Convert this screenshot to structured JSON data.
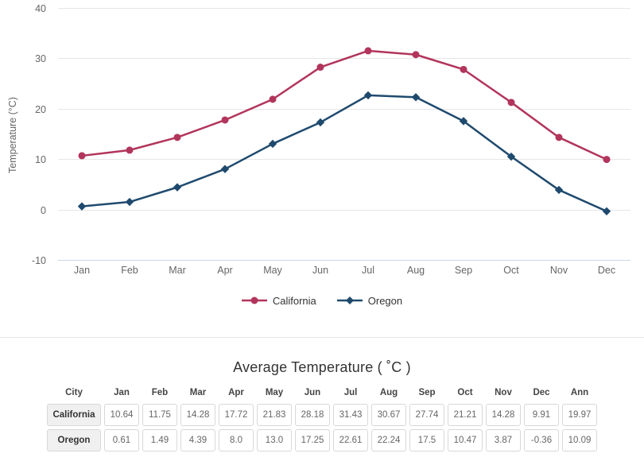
{
  "chart": {
    "y_ticks": [
      40,
      30,
      20,
      10,
      0,
      -10
    ],
    "colors": {
      "grid": "#e6e6e6",
      "axis_line": "#ccd6eb",
      "tick_label": "#666666",
      "axis_title": "#666666",
      "legend_text": "#333333"
    }
  },
  "chart_data": {
    "type": "line",
    "title": "",
    "xlabel": "",
    "ylabel": "Temperature (°C)",
    "ylim": [
      -10,
      40
    ],
    "grid": true,
    "legend_position": "bottom",
    "categories": [
      "Jan",
      "Feb",
      "Mar",
      "Apr",
      "May",
      "Jun",
      "Jul",
      "Aug",
      "Sep",
      "Oct",
      "Nov",
      "Dec"
    ],
    "series": [
      {
        "name": "California",
        "color": "#b2355c",
        "marker": "circle",
        "values": [
          10.64,
          11.75,
          14.28,
          17.72,
          21.83,
          28.18,
          31.43,
          30.67,
          27.74,
          21.21,
          14.28,
          9.91
        ]
      },
      {
        "name": "Oregon",
        "color": "#1f4a6e",
        "marker": "diamond",
        "values": [
          0.61,
          1.49,
          4.39,
          8.0,
          13.0,
          17.25,
          22.61,
          22.24,
          17.5,
          10.47,
          3.87,
          -0.36
        ]
      }
    ]
  },
  "table": {
    "title": "Average Temperature ( ˚C )",
    "headers": [
      "City",
      "Jan",
      "Feb",
      "Mar",
      "Apr",
      "May",
      "Jun",
      "Jul",
      "Aug",
      "Sep",
      "Oct",
      "Nov",
      "Dec",
      "Ann"
    ],
    "rows": [
      {
        "city": "California",
        "values": [
          "10.64",
          "11.75",
          "14.28",
          "17.72",
          "21.83",
          "28.18",
          "31.43",
          "30.67",
          "27.74",
          "21.21",
          "14.28",
          "9.91",
          "19.97"
        ]
      },
      {
        "city": "Oregon",
        "values": [
          "0.61",
          "1.49",
          "4.39",
          "8.0",
          "13.0",
          "17.25",
          "22.61",
          "22.24",
          "17.5",
          "10.47",
          "3.87",
          "-0.36",
          "10.09"
        ]
      }
    ]
  }
}
